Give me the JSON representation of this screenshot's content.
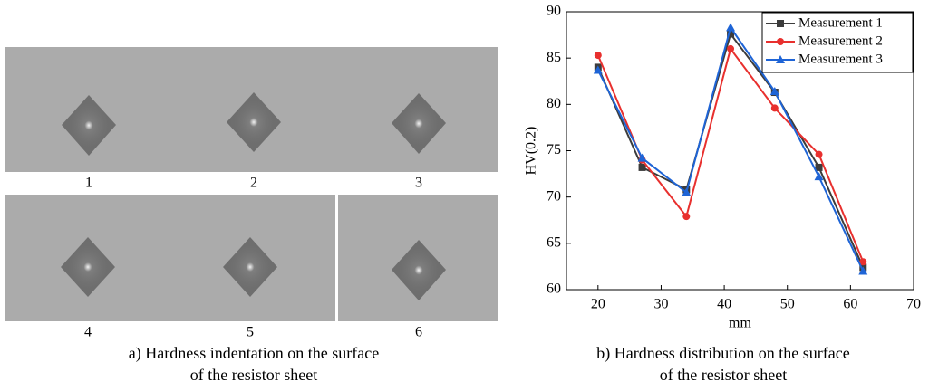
{
  "panel_a": {
    "labels": [
      "1",
      "2",
      "3",
      "4",
      "5",
      "6"
    ],
    "caption": [
      "a) Hardness indentation on the surface",
      "of the resistor sheet"
    ]
  },
  "chart_data": {
    "type": "line",
    "caption": [
      "b) Hardness distribution on the surface",
      "of the resistor sheet"
    ],
    "x_label": "mm",
    "y_label": "HV(0.2)",
    "x": [
      20,
      27,
      34,
      41,
      48,
      55,
      62
    ],
    "series": [
      {
        "name": "Measurement 1",
        "color": "#3c3c3c",
        "marker": "square",
        "values": [
          84.0,
          73.2,
          70.8,
          87.6,
          81.3,
          73.2,
          62.4
        ]
      },
      {
        "name": "Measurement 2",
        "color": "#e8302e",
        "marker": "circle",
        "values": [
          85.3,
          74.0,
          67.9,
          86.0,
          79.6,
          74.6,
          63.0
        ]
      },
      {
        "name": "Measurement 3",
        "color": "#1e64d6",
        "marker": "triangle",
        "values": [
          83.7,
          74.2,
          70.5,
          88.3,
          81.4,
          72.2,
          62.0
        ]
      }
    ],
    "xlim": [
      15,
      70
    ],
    "xticks": [
      20,
      30,
      40,
      50,
      60,
      70
    ],
    "ylim": [
      60,
      90
    ],
    "yticks": [
      60,
      65,
      70,
      75,
      80,
      85,
      90
    ],
    "legend": "top-right"
  }
}
